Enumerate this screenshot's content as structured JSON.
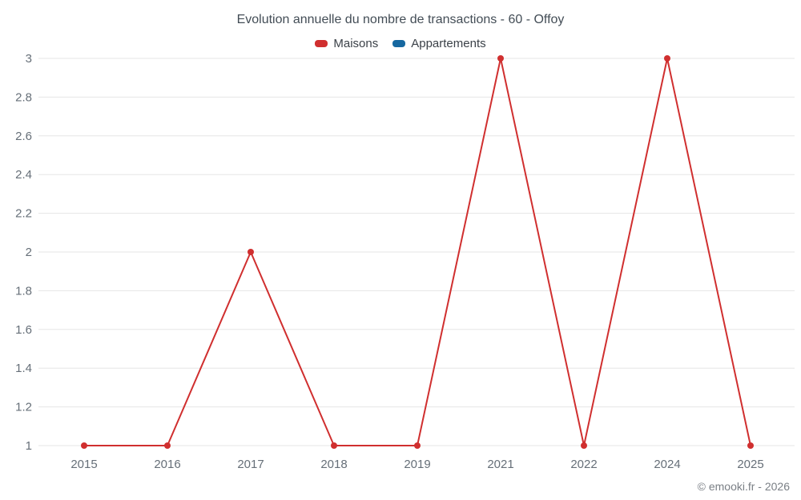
{
  "chart_data": {
    "type": "line",
    "title": "Evolution annuelle du nombre de transactions - 60 - Offoy",
    "categories": [
      "2015",
      "2016",
      "2017",
      "2018",
      "2019",
      "2021",
      "2022",
      "2024",
      "2025"
    ],
    "series": [
      {
        "name": "Maisons",
        "color": "#d02f2f",
        "values": [
          1,
          1,
          2,
          1,
          1,
          3,
          1,
          3,
          1
        ]
      },
      {
        "name": "Appartements",
        "color": "#1668a0",
        "values": []
      }
    ],
    "xlabel": "",
    "ylabel": "",
    "ylim": [
      1,
      3
    ],
    "yticks": [
      1,
      1.2,
      1.4,
      1.6,
      1.8,
      2,
      2.2,
      2.4,
      2.6,
      2.8,
      3
    ],
    "ytick_labels": [
      "1",
      "1.2",
      "1.4",
      "1.6",
      "1.8",
      "2",
      "2.2",
      "2.4",
      "2.6",
      "2.8",
      "3"
    ],
    "grid": "horizontal",
    "legend_position": "top"
  },
  "colors": {
    "grid": "#e6e6e6",
    "axis_text": "#666f78",
    "title_text": "#434d56",
    "maisons": "#d02f2f",
    "appartements": "#1668a0"
  },
  "footer": {
    "copyright": "© emooki.fr - 2026"
  }
}
